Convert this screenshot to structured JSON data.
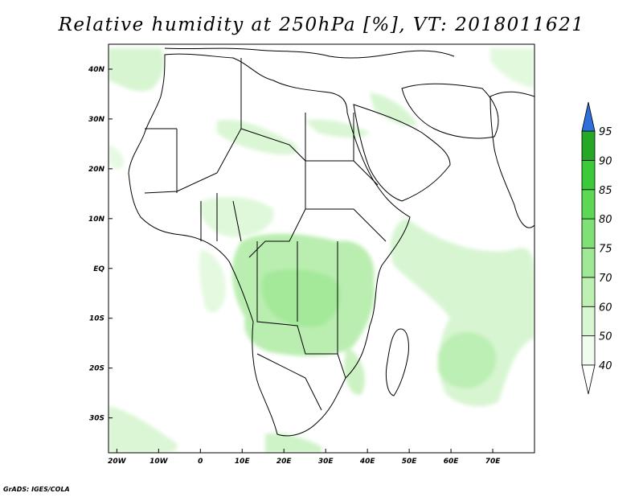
{
  "title": "Relative humidity at 250hPa [%], VT: 2018011621",
  "credit": "GrADS: IGES/COLA",
  "map": {
    "lon_range": [
      -22,
      80
    ],
    "lat_range": [
      -37,
      45
    ],
    "lon_ticks": [
      {
        "lon": -20,
        "label": "20W"
      },
      {
        "lon": -10,
        "label": "10W"
      },
      {
        "lon": 0,
        "label": "0"
      },
      {
        "lon": 10,
        "label": "10E"
      },
      {
        "lon": 20,
        "label": "20E"
      },
      {
        "lon": 30,
        "label": "30E"
      },
      {
        "lon": 40,
        "label": "40E"
      },
      {
        "lon": 50,
        "label": "50E"
      },
      {
        "lon": 60,
        "label": "60E"
      },
      {
        "lon": 70,
        "label": "70E"
      }
    ],
    "lat_ticks": [
      {
        "lat": 40,
        "label": "40N"
      },
      {
        "lat": 30,
        "label": "30N"
      },
      {
        "lat": 20,
        "label": "20N"
      },
      {
        "lat": 10,
        "label": "10N"
      },
      {
        "lat": 0,
        "label": "EQ"
      },
      {
        "lat": -10,
        "label": "10S"
      },
      {
        "lat": -20,
        "label": "20S"
      },
      {
        "lat": -30,
        "label": "30S"
      }
    ]
  },
  "colorbar": {
    "levels": [
      "40",
      "50",
      "60",
      "70",
      "75",
      "80",
      "85",
      "90",
      "95"
    ],
    "colors": [
      "#f0fcee",
      "#d8f6d2",
      "#bef0b4",
      "#9fe895",
      "#7ee075",
      "#5cd855",
      "#3cc93a",
      "#26a826"
    ],
    "overflow_color": "#2f6fdc"
  }
}
